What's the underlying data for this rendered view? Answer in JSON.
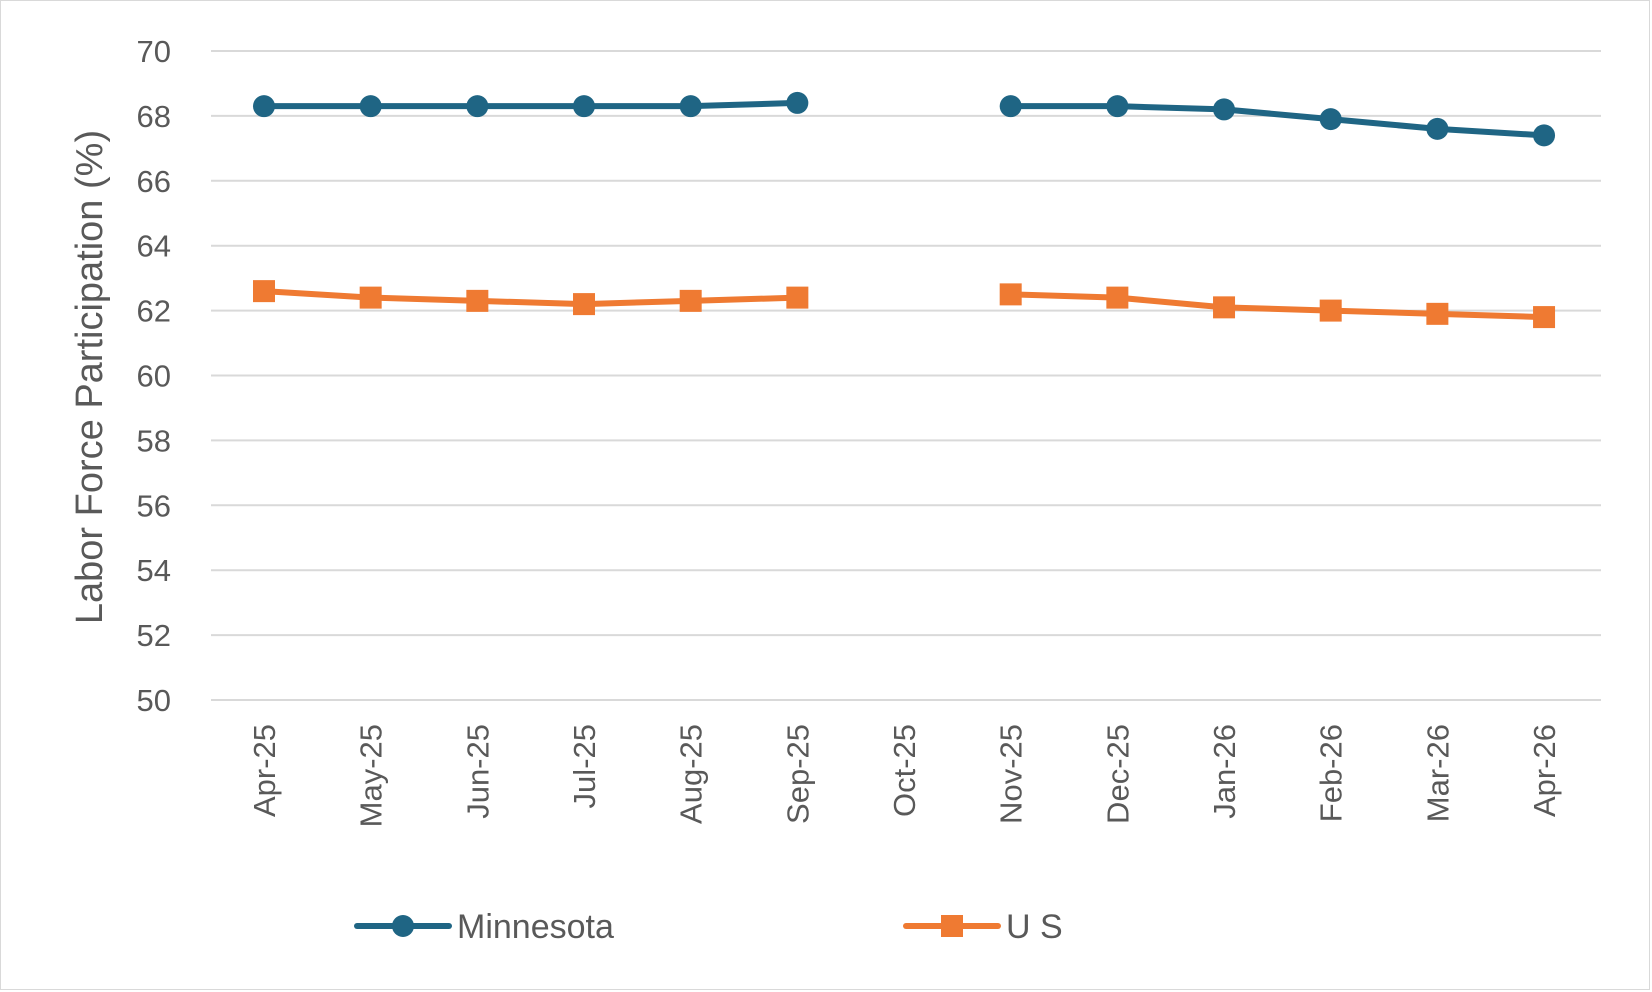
{
  "chart_data": {
    "type": "line",
    "title": "",
    "xlabel": "",
    "ylabel": "Labor Force Participation (%)",
    "ylim": [
      50,
      70
    ],
    "ytick_step": 2,
    "grid": true,
    "legend_position": "bottom",
    "categories": [
      "Apr-25",
      "May-25",
      "Jun-25",
      "Jul-25",
      "Aug-25",
      "Sep-25",
      "Oct-25",
      "Nov-25",
      "Dec-25",
      "Jan-26",
      "Feb-26",
      "Mar-26",
      "Apr-26"
    ],
    "series": [
      {
        "name": "Minnesota",
        "color": "#1f6584",
        "marker": "circle",
        "values": [
          68.3,
          68.3,
          68.3,
          68.3,
          68.3,
          68.4,
          null,
          68.3,
          68.3,
          68.2,
          67.9,
          67.6,
          67.4
        ]
      },
      {
        "name": "U S",
        "color": "#ef7a32",
        "marker": "square",
        "values": [
          62.6,
          62.4,
          62.3,
          62.2,
          62.3,
          62.4,
          null,
          62.5,
          62.4,
          62.1,
          62.0,
          61.9,
          61.8
        ]
      }
    ]
  }
}
